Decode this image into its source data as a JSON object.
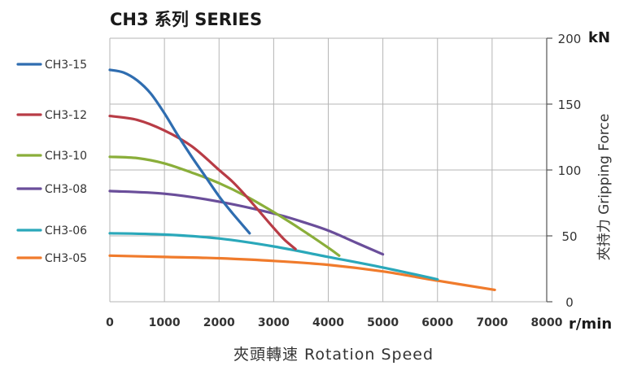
{
  "chart_data": {
    "type": "line",
    "title": "CH3 系列 SERIES",
    "xlabel": "夾頭轉速 Rotation Speed",
    "x_unit": "r/min",
    "ylabel": "夾持力 Gripping Force",
    "y_unit": "kN",
    "xlim": [
      0,
      8000
    ],
    "ylim": [
      0,
      200
    ],
    "x_ticks": [
      0,
      1000,
      2000,
      3000,
      4000,
      5000,
      6000,
      7000,
      8000
    ],
    "y_ticks": [
      0,
      50,
      100,
      150,
      200
    ],
    "grid": true,
    "legend_position": "left",
    "series": [
      {
        "name": "CH3-15",
        "color": "#2f6db0",
        "x": [
          0,
          250,
          500,
          750,
          1000,
          1250,
          1500,
          1750,
          2000,
          2250,
          2560
        ],
        "y": [
          176,
          174,
          168,
          158,
          143,
          126,
          110,
          95,
          80,
          67,
          52
        ]
      },
      {
        "name": "CH3-12",
        "color": "#b83c46",
        "x": [
          0,
          500,
          1000,
          1500,
          2000,
          2250,
          2500,
          2750,
          3000,
          3200,
          3400
        ],
        "y": [
          141,
          138,
          130,
          118,
          100,
          91,
          80,
          68,
          56,
          47,
          40
        ]
      },
      {
        "name": "CH3-10",
        "color": "#8aae3a",
        "x": [
          0,
          500,
          1000,
          1500,
          2000,
          2500,
          3000,
          3500,
          4000,
          4200
        ],
        "y": [
          110,
          109,
          105,
          98,
          90,
          80,
          68,
          55,
          41,
          35
        ]
      },
      {
        "name": "CH3-08",
        "color": "#6a4e9a",
        "x": [
          0,
          1000,
          2000,
          3000,
          3500,
          4000,
          4500,
          5000
        ],
        "y": [
          84,
          82,
          76,
          67,
          61,
          54,
          45,
          36
        ]
      },
      {
        "name": "CH3-06",
        "color": "#2aa8ba",
        "x": [
          0,
          1000,
          2000,
          3000,
          4000,
          5000,
          6000
        ],
        "y": [
          52,
          51,
          48,
          42,
          34,
          26,
          17
        ]
      },
      {
        "name": "CH3-05",
        "color": "#f07b2c",
        "x": [
          0,
          1000,
          2000,
          3000,
          4000,
          5000,
          6000,
          7050
        ],
        "y": [
          35,
          34,
          33,
          31,
          28,
          23,
          16,
          9
        ]
      }
    ]
  }
}
